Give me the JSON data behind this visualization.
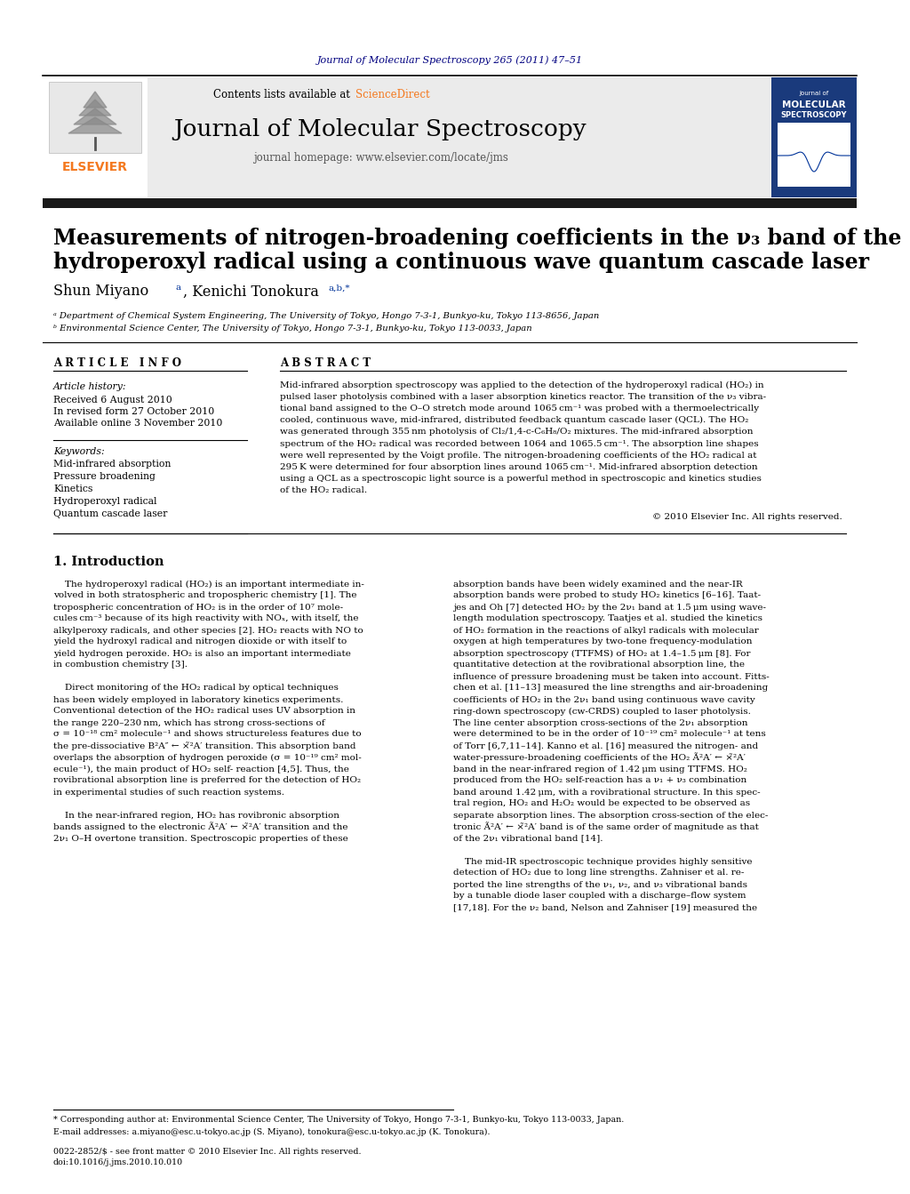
{
  "journal_ref": "Journal of Molecular Spectroscopy 265 (2011) 47–51",
  "journal_name": "Journal of Molecular Spectroscopy",
  "contents_text": "Contents lists available at ScienceDirect",
  "homepage_text": "journal homepage: www.elsevier.com/locate/jms",
  "title_line1": "Measurements of nitrogen-broadening coefficients in the ν₃ band of the",
  "title_line2": "hydroperoxyl radical using a continuous wave quantum cascade laser",
  "affil_a": "ᵃ Department of Chemical System Engineering, The University of Tokyo, Hongo 7-3-1, Bunkyo-ku, Tokyo 113-8656, Japan",
  "affil_b": "ᵇ Environmental Science Center, The University of Tokyo, Hongo 7-3-1, Bunkyo-ku, Tokyo 113-0033, Japan",
  "article_info_header": "A R T I C L E   I N F O",
  "abstract_header": "A B S T R A C T",
  "article_history_label": "Article history:",
  "received": "Received 6 August 2010",
  "revised": "In revised form 27 October 2010",
  "available": "Available online 3 November 2010",
  "keywords_label": "Keywords:",
  "keywords": [
    "Mid-infrared absorption",
    "Pressure broadening",
    "Kinetics",
    "Hydroperoxyl radical",
    "Quantum cascade laser"
  ],
  "copyright": "© 2010 Elsevier Inc. All rights reserved.",
  "section1_header": "1. Introduction",
  "footnote_star": "* Corresponding author at: Environmental Science Center, The University of Tokyo, Hongo 7-3-1, Bunkyo-ku, Tokyo 113-0033, Japan.",
  "footnote_email": "E-mail addresses: a.miyano@esc.u-tokyo.ac.jp (S. Miyano), tonokura@esc.u-tokyo.ac.jp (K. Tonokura).",
  "issn": "0022-2852/$ - see front matter © 2010 Elsevier Inc. All rights reserved.",
  "doi": "doi:10.1016/j.jms.2010.10.010",
  "bg_color": "#ffffff",
  "dark_bar_color": "#1a1a1a",
  "elsevier_orange": "#f47920",
  "link_color": "#003399",
  "journal_ref_color": "#000080",
  "abstract_lines": [
    "Mid-infrared absorption spectroscopy was applied to the detection of the hydroperoxyl radical (HO₂) in",
    "pulsed laser photolysis combined with a laser absorption kinetics reactor. The transition of the ν₃ vibra-",
    "tional band assigned to the O–O stretch mode around 1065 cm⁻¹ was probed with a thermoelectrically",
    "cooled, continuous wave, mid-infrared, distributed feedback quantum cascade laser (QCL). The HO₂",
    "was generated through 355 nm photolysis of Cl₂/1,4-c-C₆H₈/O₂ mixtures. The mid-infrared absorption",
    "spectrum of the HO₂ radical was recorded between 1064 and 1065.5 cm⁻¹. The absorption line shapes",
    "were well represented by the Voigt profile. The nitrogen-broadening coefficients of the HO₂ radical at",
    "295 K were determined for four absorption lines around 1065 cm⁻¹. Mid-infrared absorption detection",
    "using a QCL as a spectroscopic light source is a powerful method in spectroscopic and kinetics studies",
    "of the HO₂ radical."
  ],
  "col1_lines": [
    "    The hydroperoxyl radical (HO₂) is an important intermediate in-",
    "volved in both stratospheric and tropospheric chemistry [1]. The",
    "tropospheric concentration of HO₂ is in the order of 10⁷ mole-",
    "cules cm⁻³ because of its high reactivity with NOₓ, with itself, the",
    "alkylperoxy radicals, and other species [2]. HO₂ reacts with NO to",
    "yield the hydroxyl radical and nitrogen dioxide or with itself to",
    "yield hydrogen peroxide. HO₂ is also an important intermediate",
    "in combustion chemistry [3].",
    "",
    "    Direct monitoring of the HO₂ radical by optical techniques",
    "has been widely employed in laboratory kinetics experiments.",
    "Conventional detection of the HO₂ radical uses UV absorption in",
    "the range 220–230 nm, which has strong cross-sections of",
    "σ = 10⁻¹⁸ cm² molecule⁻¹ and shows structureless features due to",
    "the pre-dissociative B²A″ ← ×̃²A′ transition. This absorption band",
    "overlaps the absorption of hydrogen peroxide (σ = 10⁻¹⁹ cm² mol-",
    "ecule⁻¹), the main product of HO₂ self- reaction [4,5]. Thus, the",
    "rovibrational absorption line is preferred for the detection of HO₂",
    "in experimental studies of such reaction systems.",
    "",
    "    In the near-infrared region, HO₂ has rovibronic absorption",
    "bands assigned to the electronic Ã²A′ ← ×̃²A′ transition and the",
    "2ν₁ O–H overtone transition. Spectroscopic properties of these"
  ],
  "col2_lines": [
    "absorption bands have been widely examined and the near-IR",
    "absorption bands were probed to study HO₂ kinetics [6–16]. Taat-",
    "jes and Oh [7] detected HO₂ by the 2ν₁ band at 1.5 μm using wave-",
    "length modulation spectroscopy. Taatjes et al. studied the kinetics",
    "of HO₂ formation in the reactions of alkyl radicals with molecular",
    "oxygen at high temperatures by two-tone frequency-modulation",
    "absorption spectroscopy (TTFMS) of HO₂ at 1.4–1.5 μm [8]. For",
    "quantitative detection at the rovibrational absorption line, the",
    "influence of pressure broadening must be taken into account. Fitts-",
    "chen et al. [11–13] measured the line strengths and air-broadening",
    "coefficients of HO₂ in the 2ν₁ band using continuous wave cavity",
    "ring-down spectroscopy (cw-CRDS) coupled to laser photolysis.",
    "The line center absorption cross-sections of the 2ν₁ absorption",
    "were determined to be in the order of 10⁻¹⁹ cm² molecule⁻¹ at tens",
    "of Torr [6,7,11–14]. Kanno et al. [16] measured the nitrogen- and",
    "water-pressure-broadening coefficients of the HO₂ Ã²A′ ← ×̃²A′",
    "band in the near-infrared region of 1.42 μm using TTFMS. HO₂",
    "produced from the HO₂ self-reaction has a ν₁ + ν₃ combination",
    "band around 1.42 μm, with a rovibrational structure. In this spec-",
    "tral region, HO₂ and H₂O₂ would be expected to be observed as",
    "separate absorption lines. The absorption cross-section of the elec-",
    "tronic Ã²A′ ← ×̃²A′ band is of the same order of magnitude as that",
    "of the 2ν₁ vibrational band [14].",
    "",
    "    The mid-IR spectroscopic technique provides highly sensitive",
    "detection of HO₂ due to long line strengths. Zahniser et al. re-",
    "ported the line strengths of the ν₁, ν₂, and ν₃ vibrational bands",
    "by a tunable diode laser coupled with a discharge–flow system",
    "[17,18]. For the ν₂ band, Nelson and Zahniser [19] measured the"
  ]
}
